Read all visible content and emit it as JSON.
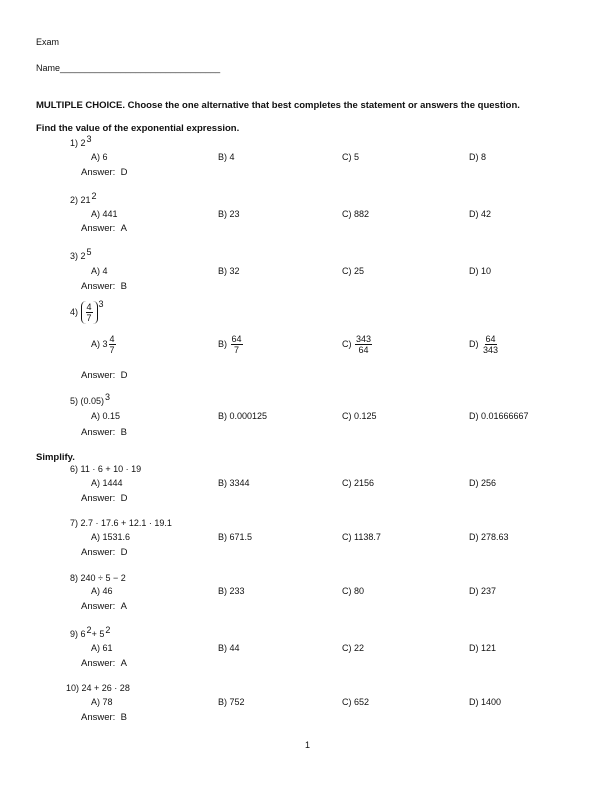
{
  "header": {
    "title": "Exam",
    "name_label": "Name________________________________"
  },
  "instructions": "MULTIPLE CHOICE.  Choose the one alternative that best completes the statement or answers the question.",
  "sections": [
    {
      "heading": "Find the value of the exponential expression.",
      "questions": [
        {
          "number": "1)",
          "prompt": [
            {
              "t": "2"
            },
            {
              "sup": "3"
            }
          ],
          "options": [
            {
              "label": "A)",
              "text": "6"
            },
            {
              "label": "B)",
              "text": "4"
            },
            {
              "label": "C)",
              "text": "5"
            },
            {
              "label": "D)",
              "text": "8"
            }
          ],
          "answer_label": "Answer:",
          "answer": "D"
        },
        {
          "number": "2)",
          "prompt": [
            {
              "t": "21"
            },
            {
              "sup": "2"
            }
          ],
          "options": [
            {
              "label": "A)",
              "text": "441"
            },
            {
              "label": "B)",
              "text": "23"
            },
            {
              "label": "C)",
              "text": "882"
            },
            {
              "label": "D)",
              "text": "42"
            }
          ],
          "answer_label": "Answer:",
          "answer": "A"
        },
        {
          "number": "3)",
          "prompt": [
            {
              "t": "2"
            },
            {
              "sup": "5"
            }
          ],
          "options": [
            {
              "label": "A)",
              "text": "4"
            },
            {
              "label": "B)",
              "text": "32"
            },
            {
              "label": "C)",
              "text": "25"
            },
            {
              "label": "D)",
              "text": "10"
            }
          ],
          "answer_label": "Answer:",
          "answer": "B"
        },
        {
          "number": "4)",
          "prompt": [
            {
              "frac": [
                "4",
                "7"
              ],
              "paren": true
            },
            {
              "sup": "3"
            }
          ],
          "options": [
            {
              "label": "A)",
              "whole": "3",
              "frac": [
                "4",
                "7"
              ]
            },
            {
              "label": "B)",
              "frac": [
                "64",
                "7"
              ]
            },
            {
              "label": "C)",
              "frac": [
                "343",
                "64"
              ]
            },
            {
              "label": "D)",
              "frac": [
                "64",
                "343"
              ]
            }
          ],
          "answer_label": "Answer:",
          "answer": "D"
        },
        {
          "number": "5)",
          "prompt": [
            {
              "t": "(0.05)"
            },
            {
              "sup": "3"
            }
          ],
          "options": [
            {
              "label": "A)",
              "text": "0.15"
            },
            {
              "label": "B)",
              "text": "0.000125"
            },
            {
              "label": "C)",
              "text": "0.125"
            },
            {
              "label": "D)",
              "text": "0.01666667"
            }
          ],
          "answer_label": "Answer:",
          "answer": "B"
        }
      ]
    },
    {
      "heading": "Simplify.",
      "questions": [
        {
          "number": "6)",
          "prompt": [
            {
              "t": "11 · 6 + 10 · 19"
            }
          ],
          "options": [
            {
              "label": "A)",
              "text": "1444"
            },
            {
              "label": "B)",
              "text": "3344"
            },
            {
              "label": "C)",
              "text": "2156"
            },
            {
              "label": "D)",
              "text": "256"
            }
          ],
          "answer_label": "Answer:",
          "answer": "D"
        },
        {
          "number": "7)",
          "prompt": [
            {
              "t": "2.7 · 17.6 + 12.1 · 19.1"
            }
          ],
          "options": [
            {
              "label": "A)",
              "text": "1531.6"
            },
            {
              "label": "B)",
              "text": "671.5"
            },
            {
              "label": "C)",
              "text": "1138.7"
            },
            {
              "label": "D)",
              "text": "278.63"
            }
          ],
          "answer_label": "Answer:",
          "answer": "D"
        },
        {
          "number": "8)",
          "prompt": [
            {
              "t": "240 ÷ 5 − 2"
            }
          ],
          "options": [
            {
              "label": "A)",
              "text": "46"
            },
            {
              "label": "B)",
              "text": "233"
            },
            {
              "label": "C)",
              "text": "80"
            },
            {
              "label": "D)",
              "text": "237"
            }
          ],
          "answer_label": "Answer:",
          "answer": "A"
        },
        {
          "number": "9)",
          "prompt": [
            {
              "t": "6"
            },
            {
              "sup": "2"
            },
            {
              "t": " + 5"
            },
            {
              "sup": "2"
            }
          ],
          "options": [
            {
              "label": "A)",
              "text": "61"
            },
            {
              "label": "B)",
              "text": "44"
            },
            {
              "label": "C)",
              "text": "22"
            },
            {
              "label": "D)",
              "text": "121"
            }
          ],
          "answer_label": "Answer:",
          "answer": "A"
        },
        {
          "number": "10)",
          "prompt": [
            {
              "t": "24 + 26 · 28"
            }
          ],
          "options": [
            {
              "label": "A)",
              "text": "78"
            },
            {
              "label": "B)",
              "text": "752"
            },
            {
              "label": "C)",
              "text": "652"
            },
            {
              "label": "D)",
              "text": "1400"
            }
          ],
          "answer_label": "Answer:",
          "answer": "B"
        }
      ]
    }
  ],
  "footer": {
    "page_number": "1"
  }
}
